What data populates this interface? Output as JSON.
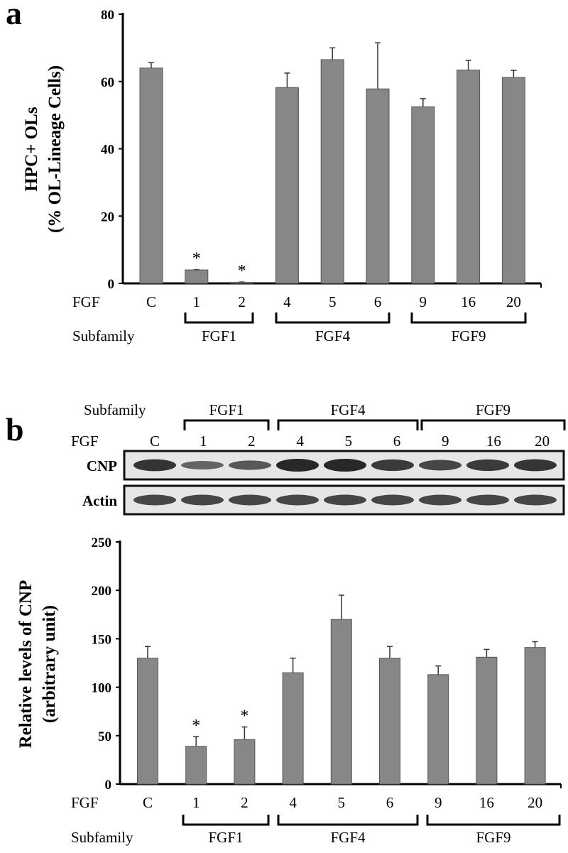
{
  "chart_data": [
    {
      "type": "bar",
      "panel": "a",
      "ylabel": "HPC+ OLs",
      "ylabel2": "(% OL-Lineage Cells)",
      "ylim": [
        0,
        80
      ],
      "yticks": [
        0,
        20,
        40,
        60,
        80
      ],
      "row_labels": {
        "fgf": "FGF",
        "subfamily": "Subfamily"
      },
      "categories": [
        "C",
        "1",
        "2",
        "4",
        "5",
        "6",
        "9",
        "16",
        "20"
      ],
      "values": [
        64,
        4,
        0.3,
        58.2,
        66.5,
        57.8,
        52.5,
        63.4,
        61.2
      ],
      "error_upper": [
        65.6,
        4.1,
        0.4,
        62.5,
        70,
        71.5,
        54.9,
        66.3,
        63.3
      ],
      "significant": [
        false,
        true,
        true,
        false,
        false,
        false,
        false,
        false,
        false
      ],
      "significance_marker": "*",
      "subfamilies": [
        {
          "name": "FGF1",
          "members": [
            "1",
            "2"
          ]
        },
        {
          "name": "FGF4",
          "members": [
            "4",
            "5",
            "6"
          ]
        },
        {
          "name": "FGF9",
          "members": [
            "9",
            "16",
            "20"
          ]
        }
      ],
      "bar_color": "#878787"
    },
    {
      "type": "bar",
      "panel": "b",
      "ylabel": "Relative levels of CNP",
      "ylabel2": "(arbitrary unit)",
      "ylim": [
        0,
        250
      ],
      "yticks": [
        0,
        50,
        100,
        150,
        200,
        250
      ],
      "row_labels": {
        "fgf": "FGF",
        "subfamily": "Subfamily"
      },
      "categories": [
        "C",
        "1",
        "2",
        "4",
        "5",
        "6",
        "9",
        "16",
        "20"
      ],
      "values": [
        130,
        39,
        46,
        115,
        170,
        130,
        113,
        131,
        141
      ],
      "error_upper": [
        142,
        49,
        59,
        130,
        195,
        142,
        122,
        139,
        147
      ],
      "significant": [
        false,
        true,
        true,
        false,
        false,
        false,
        false,
        false,
        false
      ],
      "significance_marker": "*",
      "subfamilies": [
        {
          "name": "FGF1",
          "members": [
            "1",
            "2"
          ]
        },
        {
          "name": "FGF4",
          "members": [
            "4",
            "5",
            "6"
          ]
        },
        {
          "name": "FGF9",
          "members": [
            "9",
            "16",
            "20"
          ]
        }
      ],
      "bar_color": "#878787",
      "blot": {
        "rows": [
          {
            "label": "CNP",
            "intensity": [
              0.9,
              0.5,
              0.6,
              1,
              1,
              0.85,
              0.75,
              0.85,
              0.9
            ]
          },
          {
            "label": "Actin",
            "intensity": [
              0.75,
              0.75,
              0.75,
              0.75,
              0.75,
              0.75,
              0.75,
              0.75,
              0.75
            ]
          }
        ]
      }
    }
  ],
  "panels": {
    "a": "a",
    "b": "b"
  }
}
